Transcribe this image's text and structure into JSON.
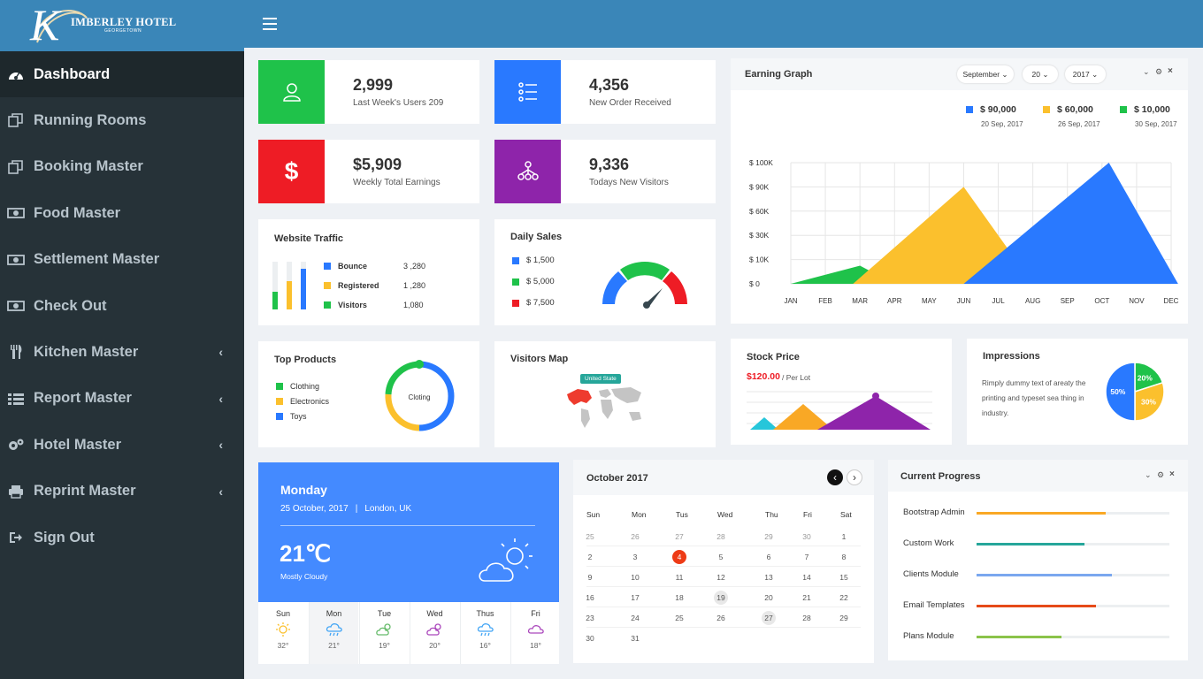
{
  "brand": {
    "initial": "K",
    "name": "IMBERLEY HOTEL",
    "sub": "GEORGETOWN"
  },
  "sidebar": {
    "items": [
      {
        "label": "Dashboard",
        "icon": "dashboard-icon",
        "active": true
      },
      {
        "label": "Running Rooms",
        "icon": "copy-icon"
      },
      {
        "label": "Booking Master",
        "icon": "copy-icon"
      },
      {
        "label": "Food Master",
        "icon": "money-icon"
      },
      {
        "label": "Settlement Master",
        "icon": "money-icon"
      },
      {
        "label": "Check Out",
        "icon": "money-icon"
      },
      {
        "label": "Kitchen Master",
        "icon": "cutlery-icon",
        "arrow": "‹"
      },
      {
        "label": "Report Master",
        "icon": "list-icon",
        "arrow": "‹"
      },
      {
        "label": "Hotel Master",
        "icon": "gears-icon",
        "arrow": "‹"
      },
      {
        "label": "Reprint Master",
        "icon": "print-icon",
        "arrow": "‹"
      },
      {
        "label": "Sign Out",
        "icon": "sign-out-icon"
      }
    ]
  },
  "stats": [
    {
      "value": "2,999",
      "label": "Last Week's Users 209",
      "color": "#1fc24a"
    },
    {
      "value": "4,356",
      "label": "New Order Received",
      "color": "#2979ff"
    },
    {
      "value": "$5,909",
      "label": "Weekly Total Earnings",
      "color": "#ee1c25"
    },
    {
      "value": "9,336",
      "label": "Todays New Visitors",
      "color": "#8e24aa"
    }
  ],
  "stats_icons": {
    "dollar": "$"
  },
  "website_traffic": {
    "title": "Website Traffic",
    "rows": [
      {
        "label": "Bounce",
        "value": "3 ,280",
        "color": "#2979ff"
      },
      {
        "label": "Registered",
        "value": "1 ,280",
        "color": "#fbc02d"
      },
      {
        "label": "Visitors",
        "value": "1,080",
        "color": "#1fc24a"
      }
    ]
  },
  "daily_sales": {
    "title": "Daily Sales",
    "rows": [
      {
        "label": "$ 1,500",
        "color": "#2979ff"
      },
      {
        "label": "$ 5,000",
        "color": "#1fc24a"
      },
      {
        "label": "$ 7,500",
        "color": "#ee1c25"
      }
    ]
  },
  "earning": {
    "title": "Earning Graph",
    "month": "September",
    "day": "20",
    "year": "2017",
    "legend": [
      {
        "value": "$ 90,000",
        "date": "20 Sep, 2017",
        "color": "#2979ff"
      },
      {
        "value": "$ 60,000",
        "date": "26 Sep, 2017",
        "color": "#fbc02d"
      },
      {
        "value": "$ 10,000",
        "date": "30 Sep, 2017",
        "color": "#1fc24a"
      }
    ]
  },
  "chart_data": {
    "type": "area",
    "x": [
      "JAN",
      "FEB",
      "MAR",
      "APR",
      "MAY",
      "JUN",
      "JUL",
      "AUG",
      "SEP",
      "OCT",
      "NOV",
      "DEC"
    ],
    "y_ticks": [
      "$ 0",
      "$ 10K",
      "$ 30K",
      "$ 60K",
      "$ 90K",
      "$ 100K"
    ],
    "series": [
      {
        "color": "#1fc24a",
        "points": [
          [
            0,
            0
          ],
          [
            2,
            15
          ],
          [
            3,
            0
          ]
        ]
      },
      {
        "color": "#fbc02d",
        "points": [
          [
            1.8,
            0
          ],
          [
            5,
            80
          ],
          [
            7,
            0
          ]
        ]
      },
      {
        "color": "#2979ff",
        "points": [
          [
            5,
            0
          ],
          [
            9.2,
            100
          ],
          [
            11.2,
            0
          ]
        ]
      }
    ]
  },
  "top_products": {
    "title": "Top Products",
    "center": "Cloting",
    "items": [
      {
        "label": "Clothing",
        "color": "#1fc24a"
      },
      {
        "label": "Electronics",
        "color": "#fbc02d"
      },
      {
        "label": "Toys",
        "color": "#2979ff"
      }
    ]
  },
  "visitors_map": {
    "title": "Visitors Map",
    "tooltip": "United State"
  },
  "stock": {
    "title": "Stock Price",
    "price": "$120.00",
    "unit": "/ Per Lot"
  },
  "impressions": {
    "title": "Impressions",
    "text": "Rimply dummy text of areaty the printing and typeset sea thing in industry.",
    "slices": [
      {
        "label": "50%",
        "value": 50,
        "color": "#2979ff"
      },
      {
        "label": "20%",
        "value": 20,
        "color": "#1fc24a"
      },
      {
        "label": "30%",
        "value": 30,
        "color": "#fbc02d"
      }
    ]
  },
  "weather": {
    "day": "Monday",
    "date": "25 October, 2017",
    "sep": "|",
    "place": "London, UK",
    "temp": "21℃",
    "cond": "Mostly Cloudy",
    "forecast": [
      {
        "day": "Sun",
        "temp": "32°",
        "icon": "sun-icon",
        "color": "#fbc02d"
      },
      {
        "day": "Mon",
        "temp": "21°",
        "icon": "rain-icon",
        "color": "#42a5f5"
      },
      {
        "day": "Tue",
        "temp": "19°",
        "icon": "cloud-sun-icon",
        "color": "#66bb6a"
      },
      {
        "day": "Wed",
        "temp": "20°",
        "icon": "cloud-sun-icon",
        "color": "#ab47bc"
      },
      {
        "day": "Thus",
        "temp": "16°",
        "icon": "rain-icon",
        "color": "#42a5f5"
      },
      {
        "day": "Fri",
        "temp": "18°",
        "icon": "cloud-icon",
        "color": "#ab47bc"
      }
    ]
  },
  "calendar": {
    "title": "October 2017",
    "prev": "‹",
    "next": "›",
    "headers": [
      "Sun",
      "Mon",
      "Tus",
      "Wed",
      "Thu",
      "Fri",
      "Sat"
    ],
    "weeks": [
      [
        "25",
        "26",
        "27",
        "28",
        "29",
        "30",
        "1"
      ],
      [
        "2",
        "3",
        "4",
        "5",
        "6",
        "7",
        "8"
      ],
      [
        "9",
        "10",
        "11",
        "12",
        "13",
        "14",
        "15"
      ],
      [
        "16",
        "17",
        "18",
        "19",
        "20",
        "21",
        "22"
      ],
      [
        "23",
        "24",
        "25",
        "26",
        "27",
        "28",
        "29"
      ],
      [
        "30",
        "31",
        "",
        "",
        "",
        "",
        ""
      ]
    ],
    "today": "4",
    "highlighted": [
      "19",
      "27"
    ]
  },
  "progress": {
    "title": "Current Progress",
    "items": [
      {
        "label": "Bootstrap Admin",
        "pct": 67,
        "color": "#f9a825"
      },
      {
        "label": "Custom Work",
        "pct": 56,
        "color": "#26a69a"
      },
      {
        "label": "Clients Module",
        "pct": 70,
        "color": "#7aa7ef"
      },
      {
        "label": "Email Templates",
        "pct": 62,
        "color": "#e64a19"
      },
      {
        "label": "Plans Module",
        "pct": 44,
        "color": "#8bc34a"
      }
    ]
  }
}
